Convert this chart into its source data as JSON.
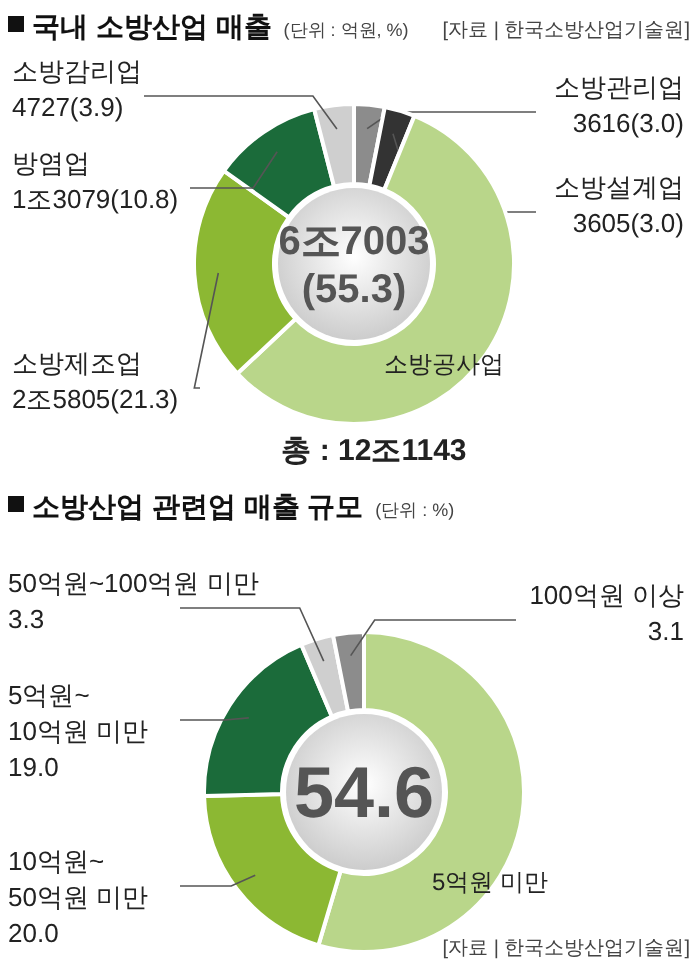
{
  "chart_data": [
    {
      "type": "donut",
      "title": "국내 소방산업 매출",
      "subtitle": "(단위 : 억원, %)",
      "categories": [
        "소방관리업",
        "소방설계업",
        "소방공사업",
        "소방제조업",
        "방염업",
        "소방감리업"
      ],
      "values": [
        3.0,
        3.0,
        55.3,
        21.3,
        10.8,
        3.9
      ],
      "value_labels": [
        "3616(3.0)",
        "3605(3.0)",
        "6조7003(55.3)",
        "2조5805(21.3)",
        "1조3079(10.8)",
        "4727(3.9)"
      ],
      "colors": [
        "#8c8c8c",
        "#333333",
        "#b9d68a",
        "#8cb833",
        "#1b6b3a",
        "#cfcfcf"
      ],
      "annotations": [
        "[자료 | 한국소방산업기술원]",
        "총 : 12조1143"
      ]
    },
    {
      "type": "donut",
      "title": "소방산업 관련업 매출 규모",
      "subtitle": "(단위 : %)",
      "categories": [
        "5억원 미만",
        "10억원~50억원 미만",
        "5억원~10억원 미만",
        "50억원~100억원 미만",
        "100억원 이상"
      ],
      "values": [
        54.6,
        20.0,
        19.0,
        3.3,
        3.1
      ],
      "value_labels": [
        "54.6",
        "20.0",
        "19.0",
        "3.3",
        "3.1"
      ],
      "colors": [
        "#b9d68a",
        "#8cb833",
        "#1b6b3a",
        "#cfcfcf",
        "#8c8c8c"
      ],
      "annotations": [
        "[자료 | 한국소방산업기술원]"
      ]
    }
  ]
}
